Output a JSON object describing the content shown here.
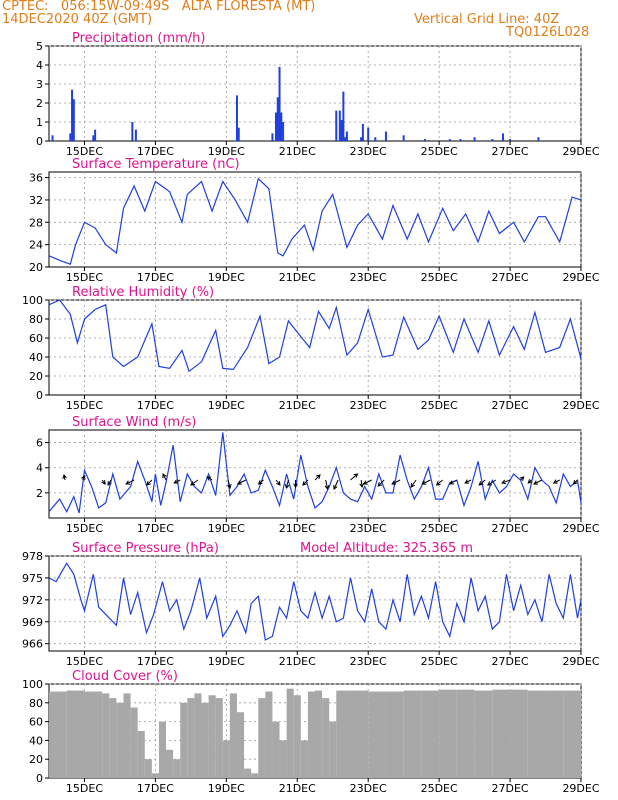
{
  "header": {
    "line1_left": "CPTEC:   056:15W-09:49S   ALTA FLORESTA (MT)",
    "line2_left": "14DEC2020 40Z (GMT)",
    "line1_right": "Vertical Grid Line: 40Z",
    "line2_right": "TQ0126L028"
  },
  "colors": {
    "header": "#e07d1a",
    "title": "#e0138c",
    "line": "#1f3fe0",
    "cloud": "#a8a8a8",
    "grid": "#9a9a9a"
  },
  "x_axis": {
    "tick_days": [
      15,
      17,
      19,
      21,
      23,
      25,
      27,
      29
    ],
    "tick_labels": [
      "15DEC",
      "17DEC",
      "19DEC",
      "21DEC",
      "23DEC",
      "25DEC",
      "27DEC",
      "29DEC"
    ],
    "start_day": 14.0,
    "end_day": 29.0
  },
  "panels": [
    {
      "title": "Precipitation (mm/h)",
      "type": "bar",
      "ylim": [
        0,
        5
      ],
      "yticks": [
        "0",
        "1",
        "2",
        "3",
        "4",
        "5"
      ],
      "yticks_v": [
        0,
        1,
        2,
        3,
        4,
        5
      ]
    },
    {
      "title": "Surface Temperature (nC)",
      "type": "line",
      "ylim": [
        20,
        37
      ],
      "yticks": [
        "20",
        "24",
        "28",
        "32",
        "36"
      ],
      "yticks_v": [
        20,
        24,
        28,
        32,
        36
      ]
    },
    {
      "title": "Relative Humidity (%)",
      "type": "line",
      "ylim": [
        0,
        100
      ],
      "yticks": [
        "0",
        "20",
        "40",
        "60",
        "80",
        "100"
      ],
      "yticks_v": [
        0,
        20,
        40,
        60,
        80,
        100
      ]
    },
    {
      "title": "Surface Wind (m/s)",
      "type": "line+vector",
      "ylim": [
        0,
        7
      ],
      "yticks": [
        "2",
        "4",
        "6"
      ],
      "yticks_v": [
        2,
        4,
        6
      ]
    },
    {
      "title": "Surface Pressure (hPa)",
      "subtitle": "Model Altitude: 325.365 m",
      "type": "line",
      "ylim": [
        965,
        978
      ],
      "yticks": [
        "966",
        "969",
        "972",
        "975",
        "978"
      ],
      "yticks_v": [
        966,
        969,
        972,
        975,
        978
      ]
    },
    {
      "title": "Cloud Cover (%)",
      "type": "area",
      "ylim": [
        0,
        100
      ],
      "yticks": [
        "0",
        "20",
        "40",
        "60",
        "80",
        "100"
      ],
      "yticks_v": [
        0,
        20,
        40,
        60,
        80,
        100
      ]
    }
  ],
  "chart_data": [
    {
      "type": "bar",
      "title": "Precipitation (mm/h)",
      "ylim": [
        0,
        5
      ],
      "x": [
        14.1,
        14.6,
        14.65,
        14.7,
        15.25,
        15.3,
        16.35,
        16.45,
        19.3,
        19.35,
        20.3,
        20.4,
        20.45,
        20.5,
        20.55,
        20.6,
        22.1,
        22.2,
        22.25,
        22.3,
        22.35,
        22.4,
        22.8,
        22.85,
        23.0,
        23.2,
        23.5,
        24.0,
        24.6,
        25.3,
        25.6,
        26.0,
        26.5,
        26.8,
        27.0,
        27.8
      ],
      "values": [
        0.3,
        0.4,
        2.7,
        2.2,
        0.3,
        0.6,
        1.0,
        0.6,
        2.4,
        0.7,
        0.4,
        1.5,
        2.3,
        3.9,
        1.5,
        1.0,
        1.6,
        1.6,
        1.1,
        2.6,
        0.2,
        0.5,
        0.2,
        0.9,
        0.7,
        0.2,
        0.5,
        0.3,
        0.1,
        0.1,
        0.1,
        0.2,
        0.1,
        0.4,
        0.1,
        0.2
      ]
    },
    {
      "type": "line",
      "title": "Surface Temperature (nC)",
      "ylim": [
        20,
        37
      ],
      "x": [
        14.0,
        14.3,
        14.6,
        14.75,
        15.0,
        15.3,
        15.6,
        15.9,
        16.1,
        16.4,
        16.7,
        17.0,
        17.4,
        17.75,
        17.9,
        18.3,
        18.6,
        18.9,
        19.25,
        19.6,
        19.9,
        20.2,
        20.45,
        20.6,
        20.85,
        21.2,
        21.45,
        21.7,
        22.0,
        22.4,
        22.7,
        23.0,
        23.4,
        23.7,
        24.1,
        24.4,
        24.7,
        25.1,
        25.4,
        25.75,
        26.1,
        26.4,
        26.7,
        27.1,
        27.4,
        27.8,
        28.0,
        28.4,
        28.75,
        29.0
      ],
      "values": [
        22.0,
        21.2,
        20.5,
        24.0,
        28.0,
        27.0,
        24.0,
        22.5,
        30.5,
        34.5,
        30.0,
        35.3,
        33.5,
        28.0,
        33.0,
        35.3,
        30.0,
        35.3,
        32.0,
        28.0,
        35.8,
        34.0,
        22.5,
        22.0,
        25.0,
        27.5,
        23.0,
        30.0,
        33.0,
        23.5,
        27.5,
        29.5,
        25.0,
        31.0,
        25.0,
        29.5,
        24.5,
        30.5,
        26.5,
        29.5,
        24.5,
        30.0,
        26.0,
        28.0,
        24.5,
        29.0,
        29.0,
        24.5,
        32.5,
        32.0
      ]
    },
    {
      "type": "line",
      "title": "Relative Humidity (%)",
      "ylim": [
        0,
        100
      ],
      "x": [
        14.0,
        14.3,
        14.6,
        14.8,
        15.0,
        15.3,
        15.6,
        15.8,
        16.1,
        16.5,
        16.9,
        17.1,
        17.4,
        17.75,
        17.95,
        18.3,
        18.7,
        18.9,
        19.2,
        19.6,
        19.95,
        20.2,
        20.5,
        20.75,
        21.0,
        21.35,
        21.6,
        21.9,
        22.1,
        22.4,
        22.7,
        23.0,
        23.4,
        23.7,
        24.0,
        24.4,
        24.7,
        25.0,
        25.4,
        25.7,
        26.1,
        26.4,
        26.7,
        27.1,
        27.4,
        27.7,
        28.0,
        28.4,
        28.7,
        29.0
      ],
      "values": [
        95.0,
        100.0,
        85.0,
        55.0,
        80.0,
        90.0,
        95.0,
        40.0,
        30.0,
        40.0,
        75.0,
        30.0,
        28.0,
        47.0,
        25.0,
        35.0,
        68.0,
        28.0,
        27.0,
        50.0,
        83.0,
        33.0,
        40.0,
        78.0,
        66.0,
        50.0,
        88.0,
        70.0,
        92.0,
        42.0,
        55.0,
        90.0,
        40.0,
        42.0,
        82.0,
        48.0,
        58.0,
        83.0,
        45.0,
        80.0,
        45.0,
        78.0,
        42.0,
        72.0,
        48.0,
        87.0,
        45.0,
        50.0,
        80.0,
        38.0
      ]
    },
    {
      "type": "line",
      "title": "Surface Wind (m/s)",
      "ylim": [
        0,
        7
      ],
      "x": [
        14.0,
        14.3,
        14.5,
        14.7,
        14.85,
        15.0,
        15.2,
        15.4,
        15.6,
        15.8,
        16.0,
        16.3,
        16.5,
        16.7,
        16.9,
        17.0,
        17.15,
        17.3,
        17.5,
        17.7,
        17.9,
        18.1,
        18.3,
        18.5,
        18.7,
        18.9,
        19.1,
        19.3,
        19.5,
        19.7,
        19.9,
        20.1,
        20.3,
        20.5,
        20.7,
        20.9,
        21.1,
        21.3,
        21.5,
        21.7,
        21.9,
        22.1,
        22.3,
        22.5,
        22.7,
        22.9,
        23.1,
        23.3,
        23.5,
        23.7,
        23.9,
        24.1,
        24.3,
        24.5,
        24.7,
        24.9,
        25.1,
        25.3,
        25.5,
        25.7,
        25.9,
        26.1,
        26.3,
        26.5,
        26.7,
        26.9,
        27.1,
        27.3,
        27.5,
        27.7,
        27.9,
        28.1,
        28.3,
        28.5,
        28.7,
        28.9,
        29.0
      ],
      "values": [
        0.5,
        1.5,
        0.5,
        1.7,
        0.4,
        3.8,
        2.5,
        0.8,
        1.2,
        3.5,
        1.5,
        2.5,
        4.5,
        3.0,
        1.3,
        3.5,
        1.0,
        2.8,
        5.8,
        1.3,
        3.5,
        2.5,
        2.0,
        3.5,
        1.8,
        6.8,
        1.8,
        2.5,
        3.5,
        2.0,
        2.2,
        3.8,
        2.5,
        1.0,
        3.5,
        1.5,
        5.0,
        2.5,
        0.8,
        1.3,
        2.5,
        4.0,
        2.0,
        1.5,
        1.3,
        2.5,
        1.5,
        3.5,
        2.0,
        2.0,
        5.0,
        3.0,
        1.5,
        2.5,
        4.0,
        1.5,
        1.5,
        2.8,
        3.0,
        1.0,
        2.5,
        4.5,
        1.5,
        3.0,
        2.0,
        2.5,
        3.5,
        3.0,
        1.5,
        4.0,
        3.0,
        2.5,
        1.2,
        3.5,
        2.5,
        3.0,
        1.2
      ]
    },
    {
      "type": "line",
      "title": "Surface Pressure (hPa)",
      "ylim": [
        965,
        978
      ],
      "x": [
        14.0,
        14.2,
        14.5,
        14.7,
        14.9,
        15.0,
        15.25,
        15.4,
        15.7,
        15.9,
        16.1,
        16.3,
        16.5,
        16.75,
        16.95,
        17.2,
        17.4,
        17.6,
        17.8,
        18.0,
        18.25,
        18.45,
        18.7,
        18.9,
        19.1,
        19.3,
        19.55,
        19.7,
        19.9,
        20.1,
        20.3,
        20.5,
        20.7,
        20.9,
        21.1,
        21.3,
        21.5,
        21.7,
        21.9,
        22.1,
        22.3,
        22.5,
        22.7,
        22.9,
        23.1,
        23.3,
        23.5,
        23.7,
        23.9,
        24.1,
        24.3,
        24.5,
        24.7,
        24.9,
        25.1,
        25.3,
        25.5,
        25.7,
        25.9,
        26.1,
        26.3,
        26.5,
        26.7,
        26.9,
        27.1,
        27.3,
        27.5,
        27.7,
        27.9,
        28.1,
        28.3,
        28.5,
        28.7,
        28.9,
        29.0
      ],
      "values": [
        975.0,
        974.5,
        977.0,
        975.5,
        972.0,
        970.5,
        975.5,
        971.0,
        969.5,
        968.5,
        975.0,
        970.0,
        973.0,
        967.5,
        970.0,
        974.5,
        970.5,
        972.0,
        968.0,
        970.5,
        975.0,
        969.5,
        972.5,
        967.0,
        968.5,
        970.5,
        967.5,
        971.5,
        972.5,
        966.5,
        967.0,
        971.0,
        969.5,
        974.5,
        970.5,
        969.5,
        973.0,
        969.5,
        972.5,
        969.0,
        969.5,
        975.0,
        970.5,
        969.0,
        973.5,
        969.0,
        968.0,
        972.0,
        969.0,
        975.5,
        970.0,
        972.5,
        969.5,
        974.5,
        969.0,
        967.0,
        971.5,
        969.0,
        975.0,
        970.5,
        972.5,
        968.0,
        969.0,
        975.5,
        970.5,
        974.0,
        970.0,
        972.0,
        969.0,
        975.5,
        971.5,
        969.5,
        975.5,
        969.5,
        972.0
      ]
    },
    {
      "type": "area",
      "title": "Cloud Cover (%)",
      "ylim": [
        0,
        100
      ],
      "x": [
        14.0,
        14.5,
        15.0,
        15.5,
        15.7,
        15.9,
        16.1,
        16.3,
        16.5,
        16.7,
        16.9,
        17.1,
        17.3,
        17.5,
        17.7,
        17.9,
        18.1,
        18.3,
        18.5,
        18.7,
        18.9,
        19.1,
        19.3,
        19.5,
        19.7,
        19.9,
        20.1,
        20.3,
        20.5,
        20.7,
        20.9,
        21.1,
        21.3,
        21.5,
        21.7,
        21.9,
        22.1,
        22.5,
        23.0,
        23.5,
        24.0,
        24.5,
        25.0,
        25.5,
        26.0,
        26.5,
        27.0,
        27.5,
        28.0,
        28.5,
        29.0
      ],
      "values": [
        92.0,
        93.0,
        92.0,
        90.0,
        85.0,
        80.0,
        90.0,
        75.0,
        50.0,
        20.0,
        5.0,
        60.0,
        30.0,
        20.0,
        80.0,
        85.0,
        90.0,
        80.0,
        88.0,
        85.0,
        40.0,
        90.0,
        70.0,
        10.0,
        5.0,
        85.0,
        92.0,
        60.0,
        40.0,
        95.0,
        88.0,
        40.0,
        92.0,
        93.0,
        85.0,
        60.0,
        93.0,
        93.0,
        92.0,
        92.0,
        93.0,
        93.0,
        94.0,
        94.0,
        93.0,
        94.0,
        94.0,
        93.0,
        93.0,
        93.0,
        86.0
      ]
    },
    {
      "type": "vector",
      "title": "Surface Wind (m/s) direction arrows",
      "x": [
        14.45,
        14.95,
        15.5,
        15.75,
        16.4,
        16.9,
        17.3,
        17.7,
        18.2,
        18.6,
        19.05,
        19.55,
        20.05,
        20.4,
        20.75,
        20.95,
        21.3,
        21.5,
        21.8,
        22.15,
        22.5,
        22.8,
        23.1,
        23.45,
        23.9,
        24.35,
        24.75,
        25.1,
        25.5,
        25.9,
        26.3,
        26.6,
        27.0,
        27.3,
        27.6,
        27.9,
        28.4,
        28.9
      ],
      "u": [
        -0.1,
        0.2,
        0.3,
        -0.3,
        -0.8,
        -0.5,
        -0.3,
        -0.6,
        -0.7,
        -0.5,
        0.2,
        -0.8,
        -0.5,
        0.4,
        -0.2,
        0.0,
        -0.5,
        0.5,
        0.2,
        -0.4,
        0.7,
        0.1,
        -0.8,
        -0.6,
        -0.8,
        -0.5,
        -0.8,
        -0.6,
        -0.7,
        -0.6,
        -0.6,
        -0.8,
        -0.8,
        0.3,
        -0.3,
        -0.8,
        -0.6,
        -0.4
      ],
      "v": [
        0.5,
        0.4,
        -0.4,
        -0.5,
        -0.4,
        -0.5,
        0.6,
        -0.3,
        -0.5,
        0.3,
        -0.8,
        -0.4,
        -0.4,
        -0.5,
        -0.8,
        -0.7,
        -0.5,
        0.5,
        -0.9,
        -0.9,
        0.6,
        -0.7,
        -0.4,
        -0.6,
        -0.4,
        -0.7,
        -0.4,
        -0.5,
        -0.4,
        -0.3,
        -0.5,
        -0.5,
        -0.3,
        0.3,
        -0.3,
        -0.4,
        -0.3,
        -0.4
      ]
    }
  ]
}
